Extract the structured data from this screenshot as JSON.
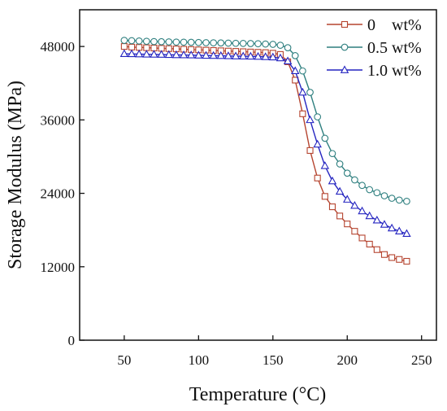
{
  "chart_data": {
    "type": "line",
    "title": "",
    "xlabel": "Temperature (°C)",
    "ylabel": "Storage Modulus (MPa)",
    "xlim": [
      20,
      260
    ],
    "ylim": [
      0,
      54000
    ],
    "xticks": [
      50,
      100,
      150,
      200,
      250
    ],
    "yticks": [
      0,
      12000,
      24000,
      36000,
      48000
    ],
    "grid": false,
    "legend_position": "top-right",
    "series": [
      {
        "name": "0    wt%",
        "color": "#b5442f",
        "marker": "square",
        "x": [
          50,
          55,
          60,
          65,
          70,
          75,
          80,
          85,
          90,
          95,
          100,
          105,
          110,
          115,
          120,
          125,
          130,
          135,
          140,
          145,
          150,
          155,
          160,
          165,
          170,
          175,
          180,
          185,
          190,
          195,
          200,
          205,
          210,
          215,
          220,
          225,
          230,
          235,
          240
        ],
        "y": [
          48000,
          47900,
          47850,
          47800,
          47750,
          47700,
          47650,
          47600,
          47550,
          47500,
          47450,
          47400,
          47350,
          47300,
          47250,
          47200,
          47150,
          47100,
          47050,
          47000,
          46900,
          46700,
          45500,
          42500,
          37000,
          31000,
          26500,
          23500,
          21800,
          20300,
          19000,
          17800,
          16700,
          15700,
          14800,
          14000,
          13500,
          13200,
          12900
        ]
      },
      {
        "name": "0.5 wt%",
        "color": "#2e7f7f",
        "marker": "circle",
        "x": [
          50,
          55,
          60,
          65,
          70,
          75,
          80,
          85,
          90,
          95,
          100,
          105,
          110,
          115,
          120,
          125,
          130,
          135,
          140,
          145,
          150,
          155,
          160,
          165,
          170,
          175,
          180,
          185,
          190,
          195,
          200,
          205,
          210,
          215,
          220,
          225,
          230,
          235,
          240
        ],
        "y": [
          49000,
          48950,
          48900,
          48850,
          48800,
          48780,
          48750,
          48720,
          48700,
          48680,
          48650,
          48620,
          48600,
          48580,
          48550,
          48520,
          48500,
          48480,
          48450,
          48400,
          48350,
          48200,
          47800,
          46500,
          44000,
          40500,
          36500,
          33000,
          30500,
          28800,
          27300,
          26200,
          25300,
          24600,
          24100,
          23600,
          23200,
          22900,
          22700
        ]
      },
      {
        "name": "1.0 wt%",
        "color": "#2424c0",
        "marker": "triangle",
        "x": [
          50,
          55,
          60,
          65,
          70,
          75,
          80,
          85,
          90,
          95,
          100,
          105,
          110,
          115,
          120,
          125,
          130,
          135,
          140,
          145,
          150,
          155,
          160,
          165,
          170,
          175,
          180,
          185,
          190,
          195,
          200,
          205,
          210,
          215,
          220,
          225,
          230,
          235,
          240
        ],
        "y": [
          46800,
          46780,
          46750,
          46720,
          46700,
          46680,
          46650,
          46620,
          46600,
          46580,
          46550,
          46520,
          46500,
          46480,
          46450,
          46420,
          46400,
          46380,
          46350,
          46300,
          46250,
          46100,
          45600,
          44000,
          40500,
          36000,
          32000,
          28500,
          26000,
          24300,
          23000,
          22000,
          21100,
          20300,
          19600,
          18900,
          18300,
          17800,
          17400
        ]
      }
    ]
  }
}
